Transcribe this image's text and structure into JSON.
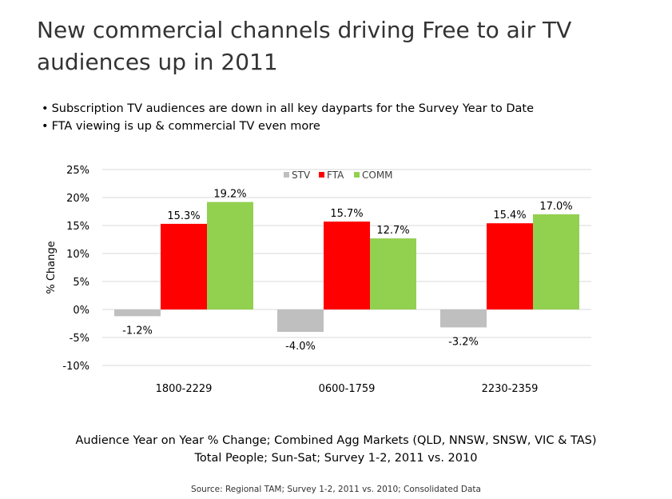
{
  "title_lines": [
    "New commercial channels driving Free to air TV",
    "audiences  up in 2011"
  ],
  "bullets": [
    "Subscription TV audiences are down in all key dayparts for the Survey Year to Date",
    "FTA viewing is up & commercial TV even more"
  ],
  "caption_lines": [
    "Audience Year on Year % Change; Combined Agg Markets (QLD, NNSW, SNSW, VIC & TAS)",
    "Total People; Sun-Sat; Survey 1-2, 2011 vs. 2010"
  ],
  "source": "Source: Regional TAM; Survey 1-2, 2011 vs. 2010; Consolidated Data",
  "chart_data": {
    "type": "bar",
    "categories": [
      "1800-2229",
      "0600-1759",
      "2230-2359"
    ],
    "series": [
      {
        "name": "STV",
        "color": "#bfbfbf",
        "values": [
          -1.2,
          -4.0,
          -3.2
        ],
        "labels": [
          "-1.2%",
          "-4.0%",
          "-3.2%"
        ]
      },
      {
        "name": "FTA",
        "color": "#ff0000",
        "values": [
          15.3,
          15.7,
          15.4
        ],
        "labels": [
          "15.3%",
          "15.7%",
          "15.4%"
        ]
      },
      {
        "name": "COMM",
        "color": "#92d050",
        "values": [
          19.2,
          12.7,
          17.0
        ],
        "labels": [
          "19.2%",
          "12.7%",
          "17.0%"
        ]
      }
    ],
    "ylabel": "% Change",
    "ylim": [
      -10,
      25
    ],
    "yticks": [
      25,
      20,
      15,
      10,
      5,
      0,
      -5,
      -10
    ],
    "ytick_labels": [
      "25%",
      "20%",
      "15%",
      "10%",
      "5%",
      "0%",
      "-5%",
      "-10%"
    ],
    "grid": true,
    "legend_position": "top-center"
  }
}
